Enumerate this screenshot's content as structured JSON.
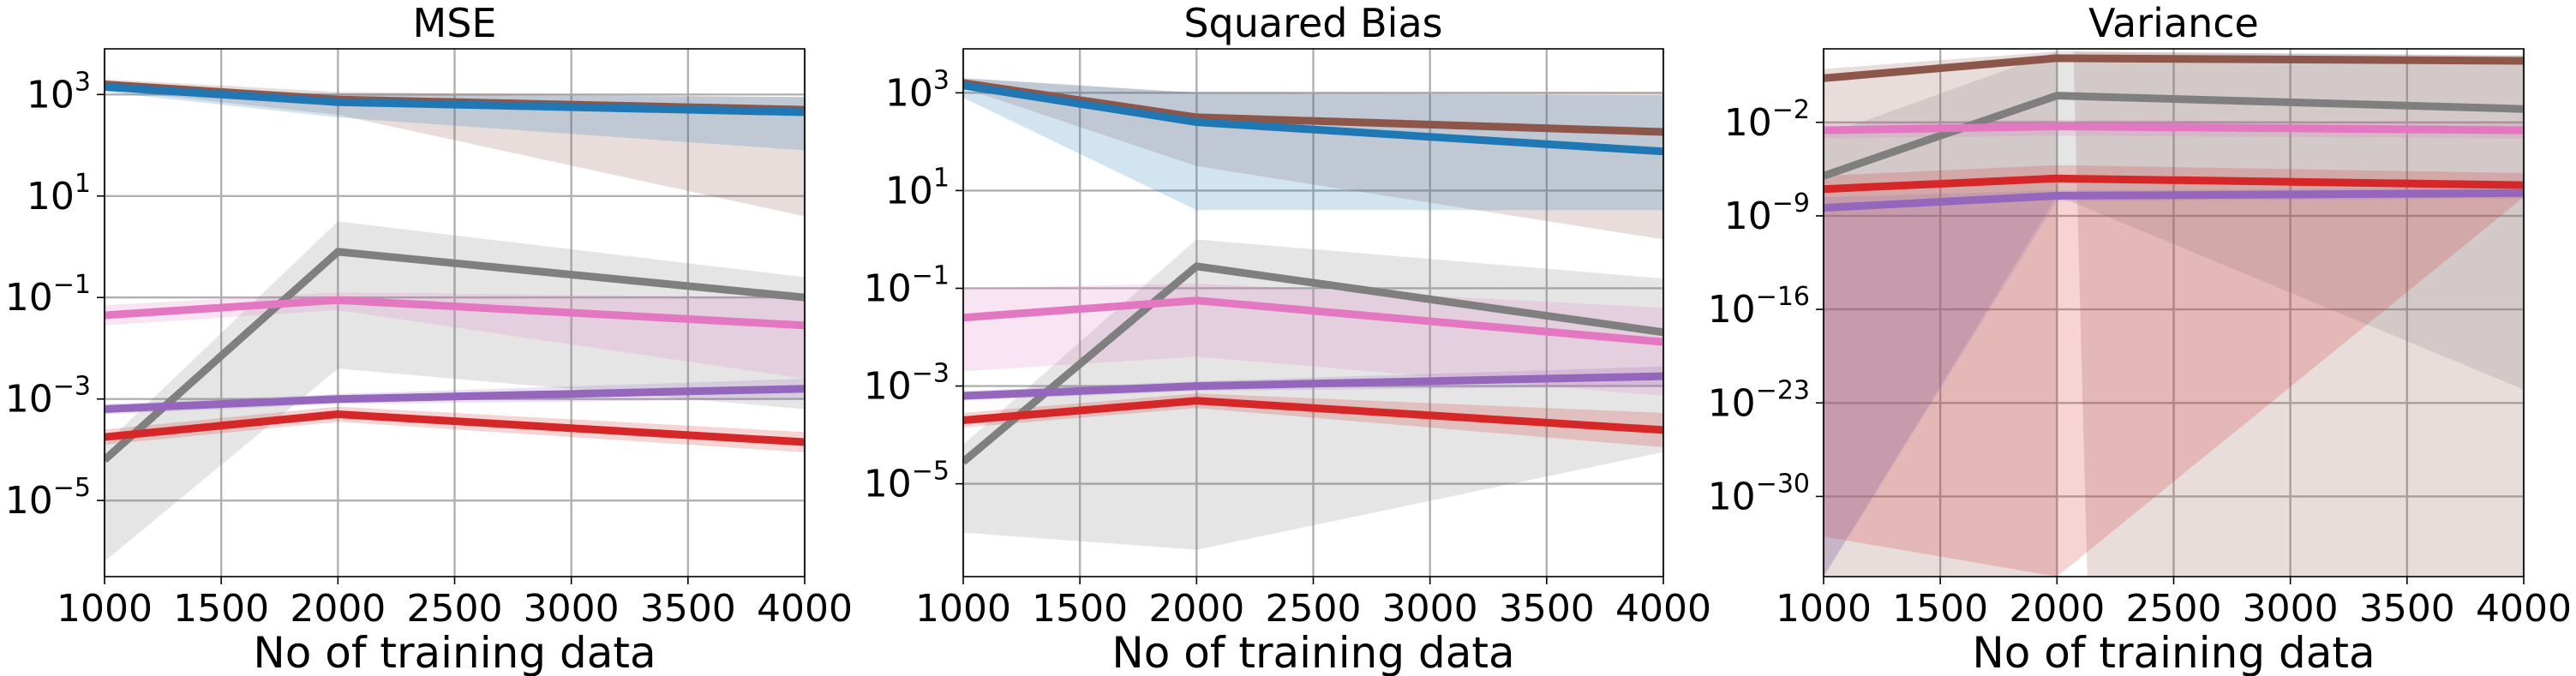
{
  "colors": {
    "MSE_grey": "#7f7f7f",
    "blue": "#1f77b4",
    "brown": "#8c564b",
    "pink": "#e377c2",
    "purple": "#9467bd",
    "red": "#d62728",
    "grid": "#b0b0b0"
  },
  "chart_data": [
    {
      "type": "line",
      "title": "MSE",
      "xlabel": "No of training data",
      "ylabel": "",
      "yscale": "log",
      "grid": true,
      "x": [
        1000,
        2000,
        4000
      ],
      "xlim": [
        1000,
        4000
      ],
      "xticks": [
        1000,
        1500,
        2000,
        2500,
        3000,
        3500,
        4000
      ],
      "ylim_exp": [
        -6.5,
        3.9
      ],
      "yticks_exp": [
        -5,
        -3,
        -1,
        1,
        3
      ],
      "series": [
        {
          "color": "#8c564b",
          "values_exp": [
            3.2,
            2.9,
            2.7
          ],
          "band_lo_exp": [
            3.1,
            2.6,
            0.6
          ],
          "band_hi_exp": [
            3.3,
            3.05,
            2.95
          ]
        },
        {
          "color": "#1f77b4",
          "values_exp": [
            3.15,
            2.85,
            2.65
          ],
          "band_lo_exp": [
            3.05,
            2.55,
            1.9
          ],
          "band_hi_exp": [
            3.25,
            3.0,
            2.95
          ]
        },
        {
          "color": "#7f7f7f",
          "values_exp": [
            -4.2,
            -0.1,
            -1.0
          ],
          "band_lo_exp": [
            -6.2,
            -2.4,
            -3.2
          ],
          "band_hi_exp": [
            -3.9,
            0.5,
            -0.6
          ]
        },
        {
          "color": "#e377c2",
          "values_exp": [
            -1.35,
            -1.05,
            -1.55
          ],
          "band_lo_exp": [
            -1.55,
            -1.25,
            -2.6
          ],
          "band_hi_exp": [
            -1.15,
            -0.9,
            -1.0
          ]
        },
        {
          "color": "#9467bd",
          "values_exp": [
            -3.2,
            -3.0,
            -2.8
          ],
          "band_lo_exp": [
            -3.3,
            -3.1,
            -3.0
          ],
          "band_hi_exp": [
            -3.1,
            -2.9,
            -2.6
          ]
        },
        {
          "color": "#d62728",
          "values_exp": [
            -3.75,
            -3.3,
            -3.85
          ],
          "band_lo_exp": [
            -3.9,
            -3.45,
            -4.05
          ],
          "band_hi_exp": [
            -3.6,
            -3.15,
            -3.65
          ]
        }
      ]
    },
    {
      "type": "line",
      "title": "Squared Bias",
      "xlabel": "No of training data",
      "ylabel": "",
      "yscale": "log",
      "grid": true,
      "x": [
        1000,
        2000,
        4000
      ],
      "xlim": [
        1000,
        4000
      ],
      "xticks": [
        1000,
        1500,
        2000,
        2500,
        3000,
        3500,
        4000
      ],
      "ylim_exp": [
        -6.9,
        3.9
      ],
      "yticks_exp": [
        -5,
        -3,
        -1,
        1,
        3
      ],
      "series": [
        {
          "color": "#8c564b",
          "values_exp": [
            3.2,
            2.5,
            2.2
          ],
          "band_lo_exp": [
            3.1,
            1.5,
            0.0
          ],
          "band_hi_exp": [
            3.3,
            3.0,
            3.0
          ]
        },
        {
          "color": "#1f77b4",
          "values_exp": [
            3.15,
            2.4,
            1.8
          ],
          "band_lo_exp": [
            2.9,
            0.6,
            0.6
          ],
          "band_hi_exp": [
            3.3,
            3.0,
            2.95
          ]
        },
        {
          "color": "#7f7f7f",
          "values_exp": [
            -4.55,
            -0.55,
            -1.9
          ],
          "band_lo_exp": [
            -6.0,
            -6.35,
            -4.35
          ],
          "band_hi_exp": [
            -4.2,
            0.0,
            -0.8
          ]
        },
        {
          "color": "#e377c2",
          "values_exp": [
            -1.6,
            -1.25,
            -2.1
          ],
          "band_lo_exp": [
            -2.7,
            -2.4,
            -3.2
          ],
          "band_hi_exp": [
            -1.0,
            -0.9,
            -1.4
          ]
        },
        {
          "color": "#9467bd",
          "values_exp": [
            -3.2,
            -3.0,
            -2.8
          ],
          "band_lo_exp": [
            -3.3,
            -3.1,
            -3.0
          ],
          "band_hi_exp": [
            -3.1,
            -2.9,
            -2.6
          ]
        },
        {
          "color": "#d62728",
          "values_exp": [
            -3.7,
            -3.3,
            -3.9
          ],
          "band_lo_exp": [
            -3.85,
            -3.45,
            -4.25
          ],
          "band_hi_exp": [
            -3.55,
            -3.15,
            -3.55
          ]
        }
      ]
    },
    {
      "type": "line",
      "title": "Variance",
      "xlabel": "No of training data",
      "ylabel": "",
      "yscale": "log",
      "grid": true,
      "x": [
        1000,
        2000,
        4000
      ],
      "xlim": [
        1000,
        4000
      ],
      "xticks": [
        1000,
        1500,
        2000,
        2500,
        3000,
        3500,
        4000
      ],
      "ylim_exp": [
        -36,
        3.5
      ],
      "yticks_exp": [
        -30,
        -23,
        -16,
        -9,
        -2
      ],
      "series": [
        {
          "color": "#8c564b",
          "values_exp": [
            1.3,
            2.8,
            2.6
          ],
          "band_lo_exp": [
            -36,
            null,
            -36
          ],
          "band_hi_exp": [
            2.0,
            3.3,
            3.3
          ],
          "band_x": [
            1000,
            2000,
            2130,
            4000
          ],
          "band_lo2_exp": [
            -36,
            -36,
            -36,
            -36
          ],
          "band_hi2_exp": [
            2.0,
            3.3,
            3.1,
            3.0
          ]
        },
        {
          "color": "#7f7f7f",
          "values_exp": [
            -6.0,
            0.0,
            -1.0
          ],
          "band_lo_exp": [
            -36,
            -7.5,
            -22.0
          ],
          "band_hi_exp": [
            -3.0,
            3.3,
            3.0
          ]
        },
        {
          "color": "#e377c2",
          "values_exp": [
            -2.6,
            -2.3,
            -2.6
          ],
          "band_lo_exp": [
            -3.2,
            -3.0,
            -3.2
          ],
          "band_hi_exp": [
            -2.0,
            -1.8,
            -2.0
          ]
        },
        {
          "color": "#d62728",
          "values_exp": [
            -7.0,
            -6.2,
            -6.7
          ],
          "band_lo_exp": [
            -33.0,
            -36,
            -7.6
          ],
          "band_hi_exp": [
            -6.0,
            -5.2,
            -5.8
          ]
        },
        {
          "color": "#9467bd",
          "values_exp": [
            -8.4,
            -7.5,
            -7.3
          ],
          "band_lo_exp": [
            -36,
            -7.9,
            -7.7
          ],
          "band_hi_exp": [
            -7.6,
            -7.1,
            -6.9
          ]
        }
      ]
    }
  ]
}
